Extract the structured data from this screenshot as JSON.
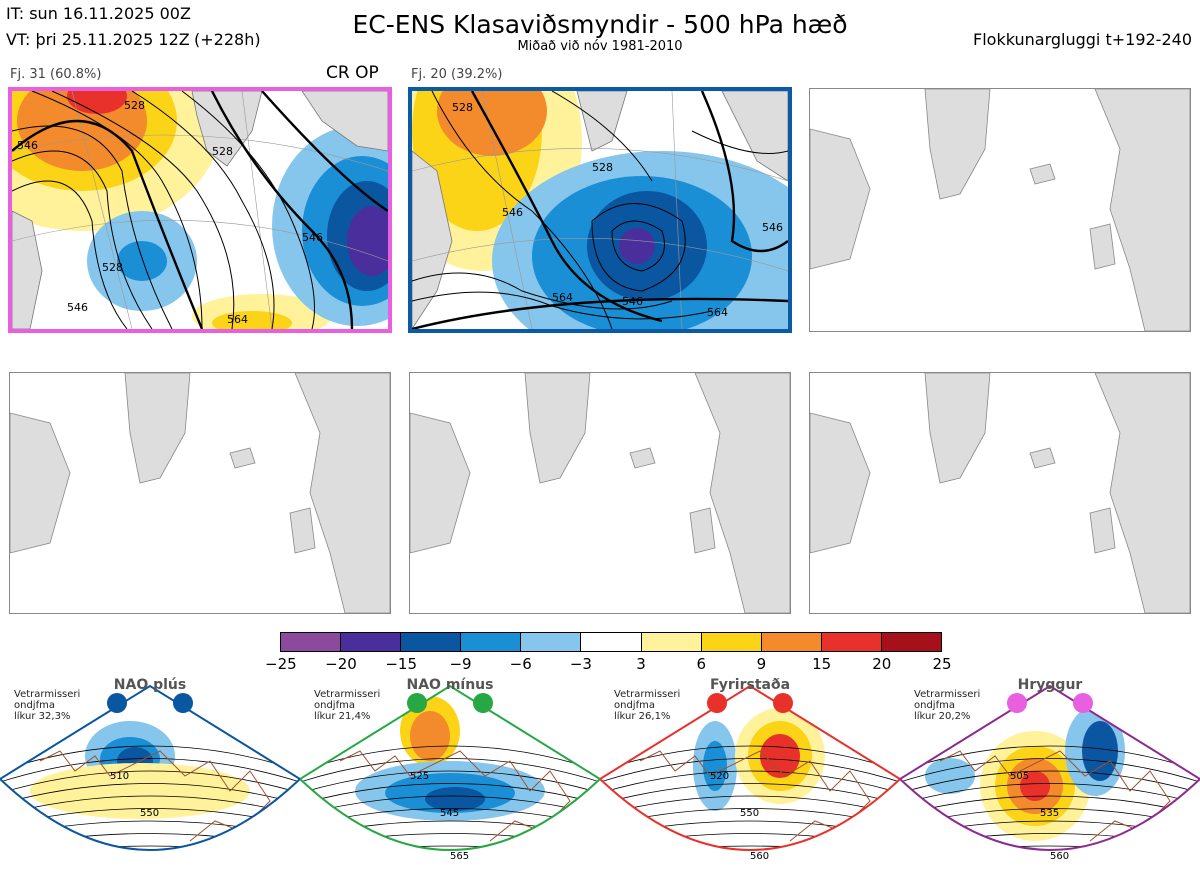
{
  "header": {
    "it": "IT: sun 16.11.2025 00Z",
    "vt": "VT: þri 25.11.2025 12Z",
    "lead": "(+228h)",
    "title": "EC-ENS Klasaviðsmyndir - 500 hPa hæð",
    "subtitle": "Miðað við nóv 1981-2010",
    "window": "Flokkunargluggi t+192-240"
  },
  "clusters": [
    {
      "label": "Fj. 31 (60.8%)",
      "members": 31,
      "percent": 60.8,
      "tag": "CR OP",
      "frame_color": "#e860e0",
      "contours": [
        "528",
        "528",
        "546",
        "546",
        "528",
        "546",
        "564"
      ]
    },
    {
      "label": "Fj. 20 (39.2%)",
      "members": 20,
      "percent": 39.2,
      "tag": "",
      "frame_color": "#0a5aa8",
      "contours": [
        "528",
        "528",
        "546",
        "546",
        "564",
        "546",
        "564"
      ]
    }
  ],
  "empty_panels": 4,
  "colorbar": {
    "ticks": [
      "−25",
      "−20",
      "−15",
      "−9",
      "−6",
      "−3",
      "3",
      "6",
      "9",
      "15",
      "20",
      "25"
    ],
    "colors": [
      "#8b4a9c",
      "#4a2f9c",
      "#0a56a0",
      "#1a8fd6",
      "#86c6ec",
      "#ffffff",
      "#fff29a",
      "#fbd417",
      "#f38a2c",
      "#e8312a",
      "#a5101a"
    ]
  },
  "regimes": [
    {
      "name": "NAO plús",
      "line1": "Vetrarmisseri",
      "line2": "ondjfma",
      "line3": "líkur 32,3%",
      "frame": "#0a56a0",
      "dot": "#0a56a0",
      "contours": [
        "510",
        "550"
      ]
    },
    {
      "name": "NAO mínus",
      "line1": "Vetrarmisseri",
      "line2": "ondjfma",
      "line3": "líkur 21,4%",
      "frame": "#27a845",
      "dot": "#27a845",
      "contours": [
        "525",
        "545",
        "565"
      ]
    },
    {
      "name": "Fyrirstaða",
      "line1": "Vetrarmisseri",
      "line2": "ondjfma",
      "line3": "líkur 26,1%",
      "frame": "#e8312a",
      "dot": "#e8312a",
      "contours": [
        "520",
        "550",
        "560"
      ]
    },
    {
      "name": "Hryggur",
      "line1": "Vetrarmisseri",
      "line2": "ondjfma",
      "line3": "líkur 20,2%",
      "frame": "#8d2a8f",
      "dot": "#e860e0",
      "contours": [
        "505",
        "535",
        "560"
      ]
    }
  ]
}
